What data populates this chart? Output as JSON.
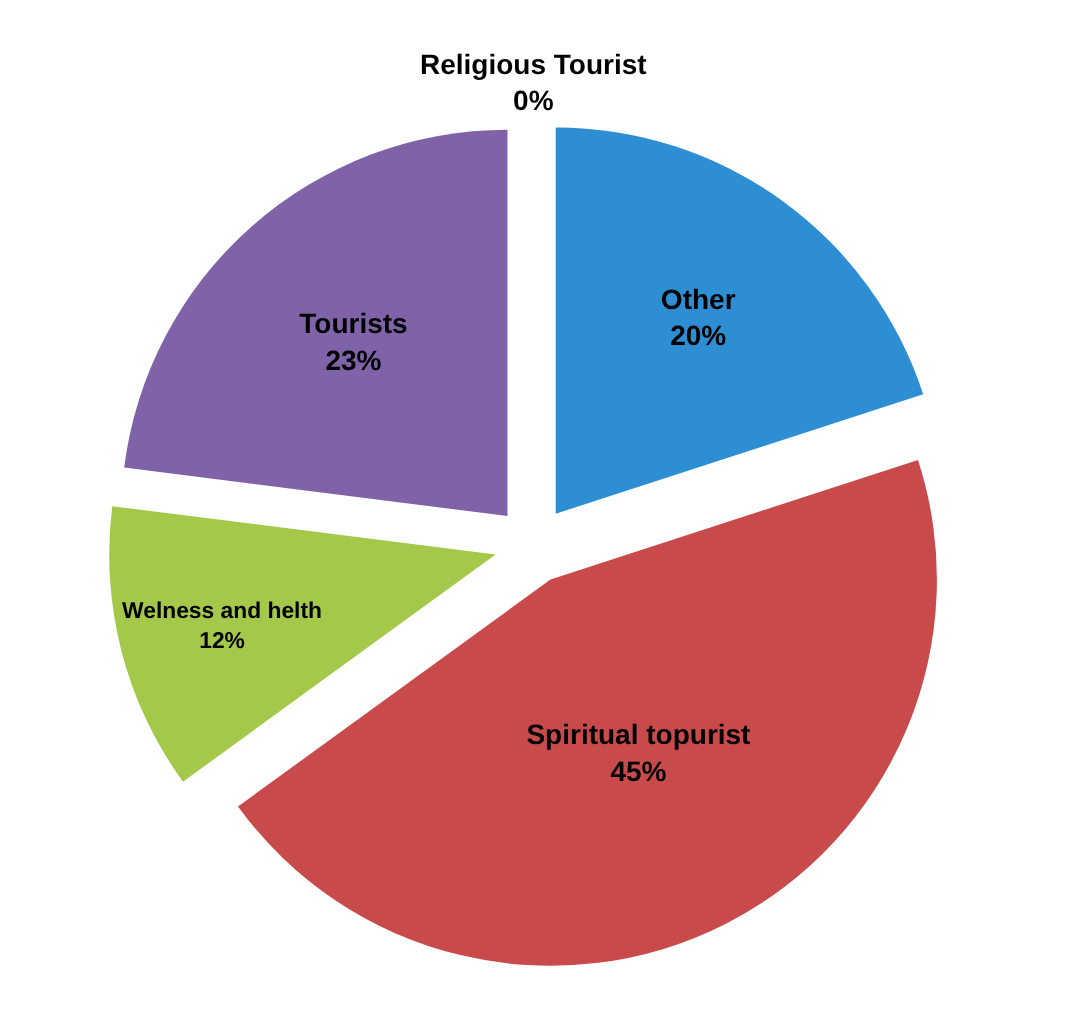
{
  "chart_data": {
    "type": "pie",
    "categories": [
      "Religious Tourist",
      "Other",
      "Spiritual topurist",
      "Welness and helth",
      "Tourists"
    ],
    "values": [
      0,
      20,
      45,
      12,
      23
    ],
    "value_labels": [
      "0%",
      "20%",
      "45%",
      "12%",
      "23%"
    ],
    "colors": [
      "#4f81bd",
      "#2e8ed4",
      "#c84a4a",
      "#a3c84a",
      "#7f62a8"
    ],
    "legend": false
  }
}
